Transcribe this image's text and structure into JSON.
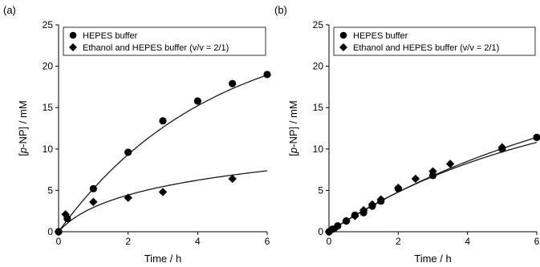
{
  "chart_data": [
    {
      "type": "scatter",
      "panel_label": "(a)",
      "xlabel": "Time / h",
      "ylabel_prefix": "[",
      "ylabel_italic": "p",
      "ylabel_suffix": "-NP] / mM",
      "xlim": [
        0,
        6
      ],
      "ylim": [
        0,
        25
      ],
      "xticks": [
        0,
        2,
        4,
        6
      ],
      "yticks": [
        0,
        5,
        10,
        15,
        20,
        25
      ],
      "legend_position": "top-left",
      "grid": false,
      "series": [
        {
          "name": "HEPES buffer",
          "marker": "circle",
          "x": [
            0,
            0.25,
            1,
            2,
            3,
            4,
            5,
            6
          ],
          "y": [
            0,
            1.6,
            5.2,
            9.6,
            13.4,
            15.8,
            17.9,
            19.0
          ],
          "fit_max": 25.3,
          "fit_k": 0.23
        },
        {
          "name": "Ethanol and HEPES buffer (v/v = 2/1)",
          "marker": "diamond",
          "x": [
            0,
            0.2,
            1,
            2,
            3,
            5
          ],
          "y": [
            0,
            2.1,
            3.6,
            4.1,
            4.8,
            6.4
          ],
          "fit_shape": "log",
          "fit_a": 3.2,
          "fit_b": 1.5
        }
      ]
    },
    {
      "type": "scatter",
      "panel_label": "(b)",
      "xlabel": "Time / h",
      "ylabel_prefix": "[",
      "ylabel_italic": "p",
      "ylabel_suffix": "-NP] / mM",
      "xlim": [
        0,
        6
      ],
      "ylim": [
        0,
        25
      ],
      "xticks": [
        0,
        2,
        4,
        6
      ],
      "yticks": [
        0,
        5,
        10,
        15,
        20,
        25
      ],
      "legend_position": "top-left",
      "grid": false,
      "series": [
        {
          "name": "HEPES buffer",
          "marker": "circle",
          "x": [
            0,
            0.1,
            0.25,
            0.5,
            0.75,
            1.0,
            1.25,
            1.5,
            2.0,
            3.0,
            5.0,
            6.0
          ],
          "y": [
            0,
            0.3,
            0.7,
            1.3,
            2.0,
            2.3,
            3.1,
            3.7,
            5.2,
            6.8,
            10.0,
            11.4
          ],
          "fit_max": 21.5,
          "fit_k": 0.126
        },
        {
          "name": "Ethanol and HEPES buffer (v/v = 2/1)",
          "marker": "diamond",
          "x": [
            0,
            0.2,
            0.5,
            0.75,
            1.0,
            1.25,
            1.5,
            2.0,
            2.5,
            3.0,
            3.5,
            5.0
          ],
          "y": [
            0,
            0.5,
            1.3,
            1.9,
            2.6,
            3.3,
            3.9,
            5.3,
            6.4,
            7.3,
            8.2,
            10.2
          ],
          "fit_max": 17.5,
          "fit_k": 0.16
        }
      ]
    }
  ]
}
